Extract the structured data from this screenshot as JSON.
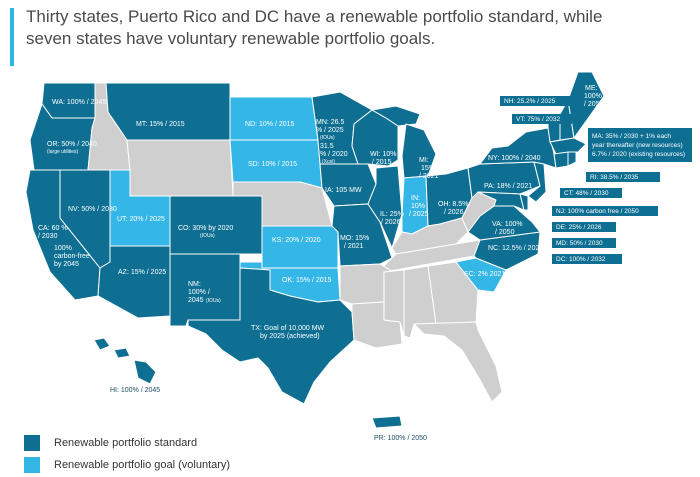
{
  "title": "Thirty states, Puerto Rico and DC have a renewable portfolio standard, while seven states have voluntary renewable portfolio goals.",
  "colors": {
    "standard": "#0e6f93",
    "goal": "#34b6e6",
    "none": "#cfcfcf",
    "accent": "#29b6ea",
    "border": "#ffffff",
    "callout_fill": "#0e6f93"
  },
  "legend": {
    "standard": "Renewable portfolio standard",
    "goal": "Renewable portfolio goal (voluntary)"
  },
  "states": {
    "WA": {
      "text": "WA: 100% / 2045",
      "category": "standard"
    },
    "OR": {
      "text": "OR: 50% / 2040",
      "note": "(large utilities)",
      "category": "standard"
    },
    "CA": {
      "line1": "CA: 60 %",
      "line2": "/ 2030",
      "line3": "100%",
      "line4": "carbon-free",
      "line5": "by 2045",
      "category": "standard"
    },
    "NV": {
      "text": "NV: 50% / 2030",
      "category": "standard"
    },
    "MT": {
      "text": "MT: 15% / 2015",
      "category": "standard"
    },
    "UT": {
      "text": "UT: 20% / 2025",
      "category": "goal"
    },
    "AZ": {
      "text": "AZ: 15% / 2025",
      "category": "standard"
    },
    "CO": {
      "line1": "CO: 30% by 2020",
      "note": "(IOUs)",
      "category": "standard"
    },
    "NM": {
      "line1": "NM:",
      "line2": "100% /",
      "line3": "2045",
      "note": "(IOUs)",
      "category": "standard"
    },
    "ND": {
      "text": "ND: 10% / 2015",
      "category": "goal"
    },
    "SD": {
      "text": "SD: 10% / 2015",
      "category": "goal"
    },
    "KS": {
      "text": "KS: 20% / 2020",
      "category": "goal"
    },
    "OK": {
      "text": "OK: 15% / 2015",
      "category": "goal"
    },
    "TX": {
      "line1": "TX: Goal of 10,000 MW",
      "line2": "by 2025 (achieved)",
      "category": "standard"
    },
    "MN": {
      "line1": "MN: 26.5",
      "line2": "% / 2025",
      "note1": "(IOUs)",
      "line3": "31.5",
      "line4": "% / 2020",
      "note2": "(Xcel)",
      "category": "standard"
    },
    "IA": {
      "text": "IA: 105 MW",
      "category": "standard"
    },
    "MO": {
      "line1": "MO: 15%",
      "line2": "/ 2021",
      "category": "standard"
    },
    "WI": {
      "line1": "WI: 10%",
      "line2": "/ 2015",
      "category": "standard"
    },
    "IL": {
      "line1": "IL: 25%",
      "line2": "/ 2026",
      "category": "standard"
    },
    "MI": {
      "line1": "MI:",
      "line2": "15%",
      "line3": "/ 2021",
      "category": "standard"
    },
    "IN": {
      "line1": "IN:",
      "line2": "10%",
      "line3": "/ 2025",
      "category": "goal"
    },
    "OH": {
      "line1": "OH: 8.5%",
      "line2": "/ 2026",
      "category": "standard"
    },
    "PA": {
      "text": "PA: 18% / 2021",
      "category": "standard"
    },
    "NY": {
      "text": "NY: 100% / 2040",
      "category": "standard"
    },
    "VA": {
      "line1": "VA: 100%",
      "line2": "/ 2050",
      "category": "standard"
    },
    "NC": {
      "text": "NC: 12.5% / 2021",
      "category": "standard"
    },
    "SC": {
      "text": "SC: 2% 2021",
      "category": "goal"
    },
    "ME": {
      "line1": "ME:",
      "line2": "100%",
      "line3": "/ 2050",
      "category": "standard"
    },
    "HI": {
      "text": "HI: 100% / 2045",
      "category": "standard"
    },
    "PR": {
      "text": "PR: 100% / 2050",
      "category": "standard"
    }
  },
  "callouts": {
    "NH": "NH: 25.2% / 2025",
    "VT": "VT: 75% / 2032",
    "MA_line1": "MA: 35% / 2030 + 1% each",
    "MA_line2": "year thereafter (new resources)",
    "MA_line3": "6.7% / 2020 (existing resources)",
    "RI": "RI: 38.5% / 2035",
    "CT": "CT: 48% / 2030",
    "NJ": "NJ: 100% carbon free / 2050",
    "DE": "DE: 25% / 2026",
    "MD": "MD: 50% / 2030",
    "DC": "DC: 100% / 2032"
  }
}
